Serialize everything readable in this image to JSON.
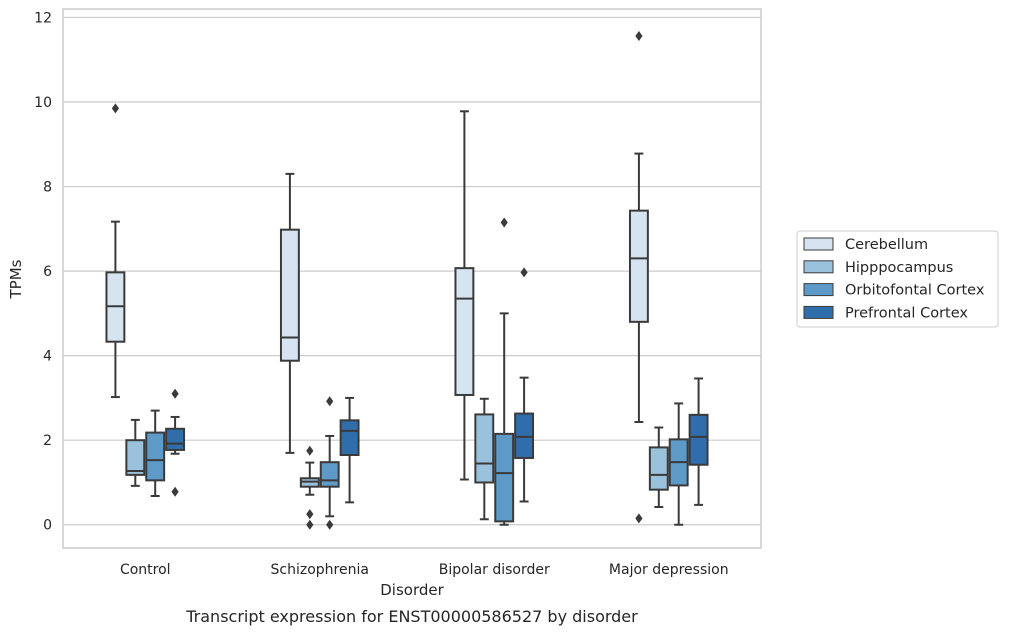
{
  "chart_data": {
    "type": "box",
    "caption": "Transcript expression for ENST00000586527 by disorder",
    "xlabel": "Disorder",
    "ylabel": "TPMs",
    "ylim": [
      -0.55,
      12.2
    ],
    "yticks": [
      "0",
      "2",
      "4",
      "6",
      "8",
      "10",
      "12"
    ],
    "grid": true,
    "legend_position": "right",
    "categories": [
      "Control",
      "Schizophrenia",
      "Bipolar disorder",
      "Major depression"
    ],
    "series": [
      {
        "name": "Cerebellum",
        "color": "#d6e4f2",
        "boxes": [
          {
            "whisker_low": 3.02,
            "q1": 4.33,
            "median": 5.17,
            "q3": 5.97,
            "whisker_high": 7.17,
            "outliers": [
              9.85
            ]
          },
          {
            "whisker_low": 1.7,
            "q1": 3.88,
            "median": 4.43,
            "q3": 6.98,
            "whisker_high": 8.3,
            "outliers": []
          },
          {
            "whisker_low": 1.07,
            "q1": 3.07,
            "median": 5.35,
            "q3": 6.07,
            "whisker_high": 9.78,
            "outliers": []
          },
          {
            "whisker_low": 2.43,
            "q1": 4.8,
            "median": 6.3,
            "q3": 7.43,
            "whisker_high": 8.78,
            "outliers": [
              0.15,
              11.56
            ]
          }
        ]
      },
      {
        "name": "Hipppocampus",
        "color": "#9ac2dc",
        "boxes": [
          {
            "whisker_low": 0.92,
            "q1": 1.18,
            "median": 1.27,
            "q3": 2.0,
            "whisker_high": 2.48,
            "outliers": []
          },
          {
            "whisker_low": 0.71,
            "q1": 0.9,
            "median": 1.02,
            "q3": 1.1,
            "whisker_high": 1.47,
            "outliers": [
              1.75,
              0.25,
              0.0
            ]
          },
          {
            "whisker_low": 0.13,
            "q1": 1.0,
            "median": 1.45,
            "q3": 2.61,
            "whisker_high": 2.98,
            "outliers": []
          },
          {
            "whisker_low": 0.42,
            "q1": 0.83,
            "median": 1.18,
            "q3": 1.83,
            "whisker_high": 2.3,
            "outliers": []
          }
        ]
      },
      {
        "name": "Orbitofontal Cortex",
        "color": "#5d9ac8",
        "boxes": [
          {
            "whisker_low": 0.68,
            "q1": 1.05,
            "median": 1.53,
            "q3": 2.18,
            "whisker_high": 2.7,
            "outliers": []
          },
          {
            "whisker_low": 0.2,
            "q1": 0.9,
            "median": 1.05,
            "q3": 1.48,
            "whisker_high": 2.1,
            "outliers": [
              2.92,
              0.0
            ]
          },
          {
            "whisker_low": 0.0,
            "q1": 0.08,
            "median": 1.22,
            "q3": 2.15,
            "whisker_high": 5.0,
            "outliers": [
              7.15
            ]
          },
          {
            "whisker_low": 0.0,
            "q1": 0.93,
            "median": 1.48,
            "q3": 2.02,
            "whisker_high": 2.87,
            "outliers": []
          }
        ]
      },
      {
        "name": "Prefrontal Cortex",
        "color": "#2f6eab",
        "boxes": [
          {
            "whisker_low": 1.68,
            "q1": 1.77,
            "median": 1.92,
            "q3": 2.27,
            "whisker_high": 2.55,
            "outliers": [
              3.1,
              0.78
            ]
          },
          {
            "whisker_low": 0.53,
            "q1": 1.65,
            "median": 2.22,
            "q3": 2.47,
            "whisker_high": 3.0,
            "outliers": []
          },
          {
            "whisker_low": 0.55,
            "q1": 1.58,
            "median": 2.08,
            "q3": 2.63,
            "whisker_high": 3.48,
            "outliers": [
              5.97
            ]
          },
          {
            "whisker_low": 0.47,
            "q1": 1.42,
            "median": 2.08,
            "q3": 2.6,
            "whisker_high": 3.46,
            "outliers": []
          }
        ]
      }
    ]
  }
}
